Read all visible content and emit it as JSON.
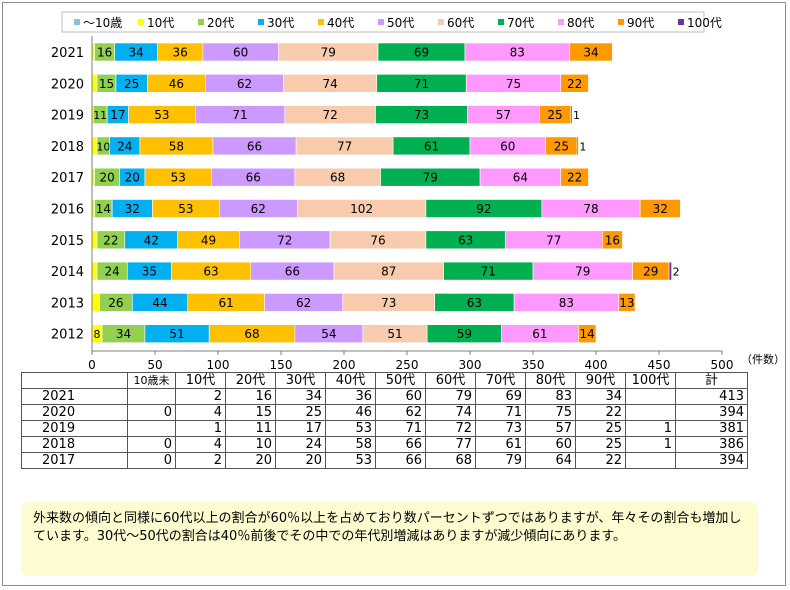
{
  "chart_data": {
    "type": "bar",
    "orientation": "horizontal",
    "stacked": true,
    "categories": [
      "2021",
      "2020",
      "2019",
      "2018",
      "2017",
      "2016",
      "2015",
      "2014",
      "2013",
      "2012"
    ],
    "series": [
      {
        "name": "～10歳",
        "color": "#8ebfe0",
        "values": [
          null,
          null,
          null,
          null,
          null,
          null,
          null,
          null,
          null,
          null
        ]
      },
      {
        "name": "10代",
        "color": "#ffff00",
        "values": [
          2,
          4,
          1,
          4,
          2,
          2,
          4,
          4,
          6,
          8
        ]
      },
      {
        "name": "20代",
        "color": "#92d050",
        "values": [
          16,
          15,
          11,
          10,
          20,
          14,
          22,
          24,
          26,
          34
        ]
      },
      {
        "name": "30代",
        "color": "#00b0f0",
        "values": [
          34,
          25,
          17,
          24,
          20,
          32,
          42,
          35,
          44,
          51
        ]
      },
      {
        "name": "40代",
        "color": "#ffc000",
        "values": [
          36,
          46,
          53,
          58,
          53,
          53,
          49,
          63,
          61,
          68
        ]
      },
      {
        "name": "50代",
        "color": "#cc99ff",
        "values": [
          60,
          62,
          71,
          66,
          66,
          62,
          72,
          66,
          62,
          54
        ]
      },
      {
        "name": "60代",
        "color": "#f8cbad",
        "values": [
          79,
          74,
          72,
          77,
          68,
          102,
          76,
          87,
          73,
          51
        ]
      },
      {
        "name": "70代",
        "color": "#00b050",
        "values": [
          69,
          71,
          73,
          61,
          79,
          92,
          63,
          71,
          63,
          59
        ]
      },
      {
        "name": "80代",
        "color": "#ff99ff",
        "values": [
          83,
          75,
          57,
          60,
          64,
          78,
          77,
          79,
          83,
          61
        ]
      },
      {
        "name": "90代",
        "color": "#ff9900",
        "values": [
          34,
          22,
          25,
          25,
          22,
          32,
          16,
          29,
          13,
          14
        ]
      },
      {
        "name": "100代",
        "color": "#7030a0",
        "values": [
          null,
          null,
          1,
          1,
          null,
          null,
          null,
          2,
          null,
          null
        ]
      }
    ],
    "xlim": [
      0,
      500
    ],
    "xticks": [
      0,
      50,
      100,
      150,
      200,
      250,
      300,
      350,
      400,
      450,
      500
    ],
    "xunit": "（件数）",
    "legend_position": "top",
    "grid": false
  },
  "table": {
    "headers": [
      "",
      "10歳未",
      "10代",
      "20代",
      "30代",
      "40代",
      "50代",
      "60代",
      "70代",
      "80代",
      "90代",
      "100代",
      "計"
    ],
    "rows": [
      [
        "2021",
        "",
        "2",
        "16",
        "34",
        "36",
        "60",
        "79",
        "69",
        "83",
        "34",
        "",
        "413"
      ],
      [
        "2020",
        "0",
        "4",
        "15",
        "25",
        "46",
        "62",
        "74",
        "71",
        "75",
        "22",
        "",
        "394"
      ],
      [
        "2019",
        "",
        "1",
        "11",
        "17",
        "53",
        "71",
        "72",
        "73",
        "57",
        "25",
        "1",
        "381"
      ],
      [
        "2018",
        "0",
        "4",
        "10",
        "24",
        "58",
        "66",
        "77",
        "61",
        "60",
        "25",
        "1",
        "386"
      ],
      [
        "2017",
        "0",
        "2",
        "20",
        "20",
        "53",
        "66",
        "68",
        "79",
        "64",
        "22",
        "",
        "394"
      ]
    ]
  },
  "note": {
    "text": "外来数の傾向と同様に60代以上の割合が60％以上を占めており数パーセントずつではありますが、年々その割合も増加しています。30代～50代の割合は40％前後でその中での年代別増減はありますが減少傾向にあります。"
  }
}
